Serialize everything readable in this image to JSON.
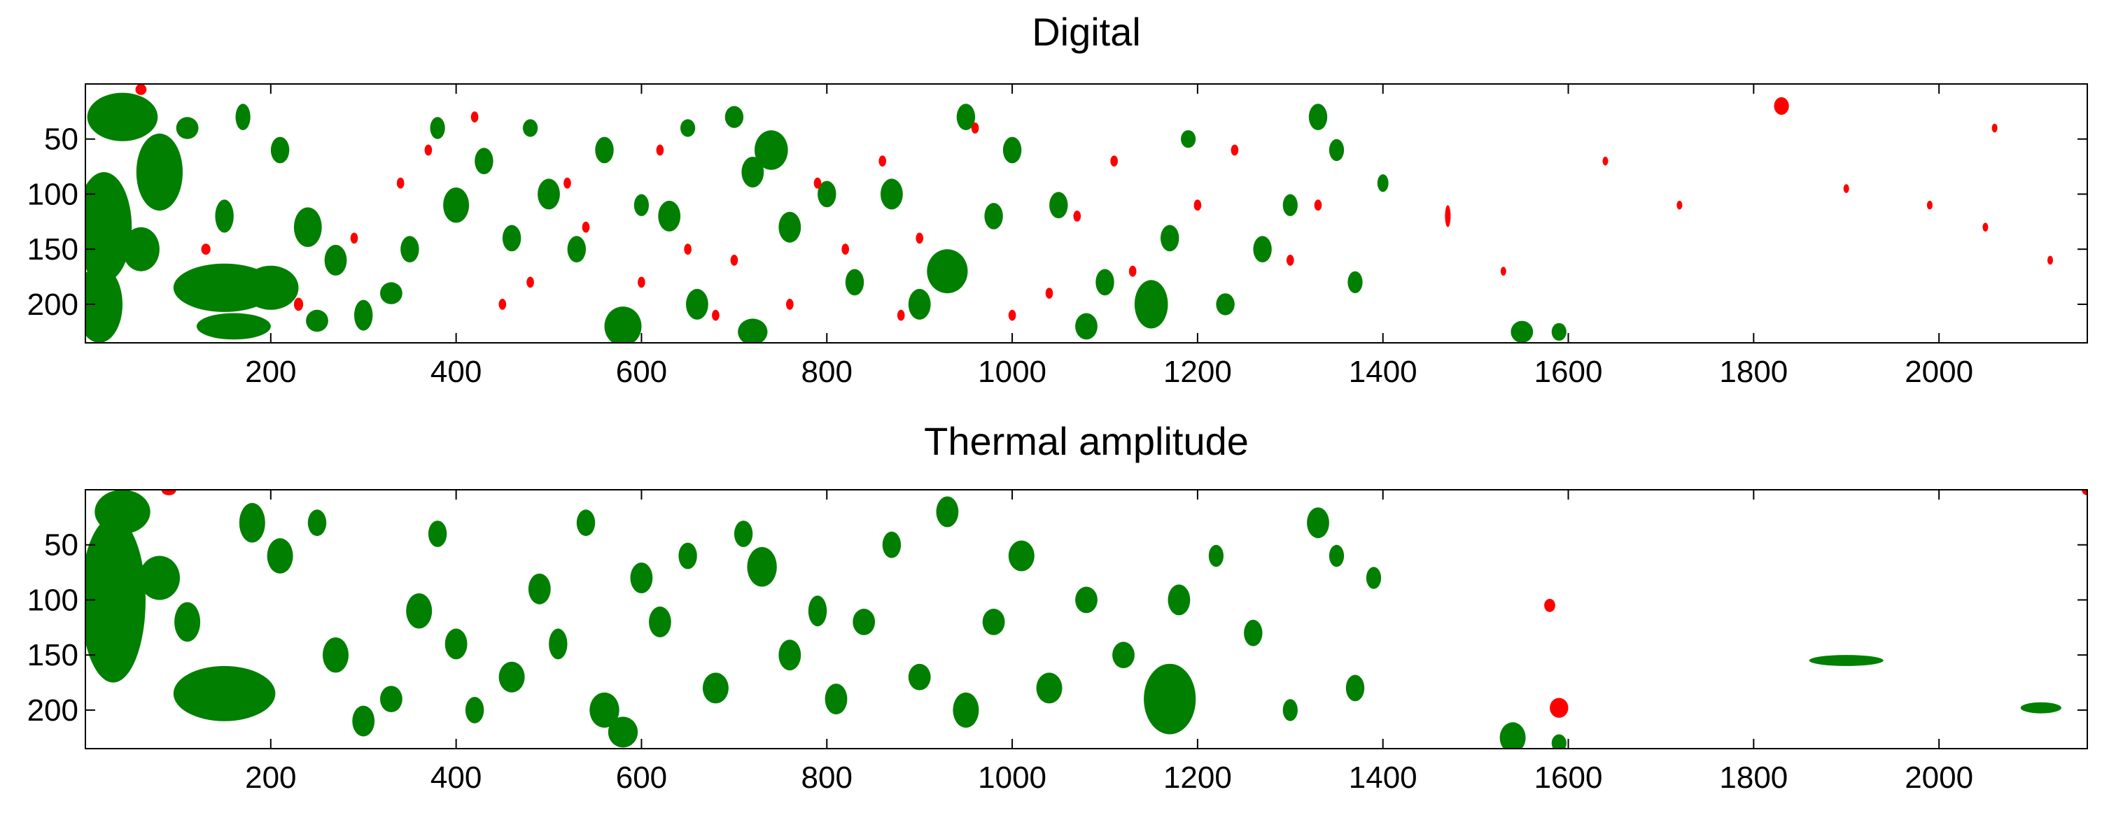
{
  "colors": {
    "green": "#007f00",
    "red": "#ff0000",
    "axis": "#000000"
  },
  "chart_data": [
    {
      "type": "heatmap",
      "title": "Digital",
      "xlim": [
        0,
        2160
      ],
      "ylim": [
        0,
        235
      ],
      "y_reversed": true,
      "xticks": [
        200,
        400,
        600,
        800,
        1000,
        1200,
        1400,
        1600,
        1800,
        2000
      ],
      "yticks": [
        50,
        100,
        150,
        200
      ],
      "classes": [
        {
          "name": "",
          "color": "#007f00"
        },
        {
          "name": "",
          "color": "#ff0000"
        }
      ],
      "grid": false,
      "legend": "none",
      "green_spots": [
        [
          40,
          30,
          38,
          22
        ],
        [
          20,
          130,
          30,
          50
        ],
        [
          15,
          200,
          25,
          35
        ],
        [
          80,
          80,
          25,
          35
        ],
        [
          60,
          150,
          20,
          20
        ],
        [
          110,
          40,
          12,
          10
        ],
        [
          150,
          120,
          10,
          15
        ],
        [
          150,
          185,
          55,
          22
        ],
        [
          200,
          185,
          30,
          20
        ],
        [
          160,
          220,
          40,
          12
        ],
        [
          170,
          30,
          8,
          12
        ],
        [
          210,
          60,
          10,
          12
        ],
        [
          240,
          130,
          15,
          18
        ],
        [
          270,
          160,
          12,
          14
        ],
        [
          300,
          210,
          10,
          14
        ],
        [
          330,
          190,
          12,
          10
        ],
        [
          350,
          150,
          10,
          12
        ],
        [
          380,
          40,
          8,
          10
        ],
        [
          400,
          110,
          14,
          16
        ],
        [
          430,
          70,
          10,
          12
        ],
        [
          460,
          140,
          10,
          12
        ],
        [
          480,
          40,
          8,
          8
        ],
        [
          500,
          100,
          12,
          14
        ],
        [
          530,
          150,
          10,
          12
        ],
        [
          560,
          60,
          10,
          12
        ],
        [
          580,
          220,
          20,
          18
        ],
        [
          600,
          110,
          8,
          10
        ],
        [
          630,
          120,
          12,
          14
        ],
        [
          650,
          40,
          8,
          8
        ],
        [
          660,
          200,
          12,
          14
        ],
        [
          700,
          30,
          10,
          10
        ],
        [
          720,
          80,
          12,
          14
        ],
        [
          740,
          60,
          18,
          18
        ],
        [
          760,
          130,
          12,
          14
        ],
        [
          800,
          100,
          10,
          12
        ],
        [
          830,
          180,
          10,
          12
        ],
        [
          870,
          100,
          12,
          14
        ],
        [
          900,
          200,
          12,
          14
        ],
        [
          930,
          170,
          22,
          20
        ],
        [
          950,
          30,
          10,
          12
        ],
        [
          980,
          120,
          10,
          12
        ],
        [
          1000,
          60,
          10,
          12
        ],
        [
          1050,
          110,
          10,
          12
        ],
        [
          1080,
          220,
          12,
          12
        ],
        [
          1100,
          180,
          10,
          12
        ],
        [
          1150,
          200,
          18,
          22
        ],
        [
          1170,
          140,
          10,
          12
        ],
        [
          1190,
          50,
          8,
          8
        ],
        [
          1230,
          200,
          10,
          10
        ],
        [
          1270,
          150,
          10,
          12
        ],
        [
          1300,
          110,
          8,
          10
        ],
        [
          1330,
          30,
          10,
          12
        ],
        [
          1350,
          60,
          8,
          10
        ],
        [
          1370,
          180,
          8,
          10
        ],
        [
          1400,
          90,
          6,
          8
        ],
        [
          1550,
          225,
          12,
          10
        ],
        [
          1590,
          225,
          8,
          8
        ],
        [
          720,
          225,
          16,
          12
        ],
        [
          250,
          215,
          12,
          10
        ]
      ],
      "red_spots": [
        [
          60,
          5,
          6,
          5
        ],
        [
          130,
          150,
          5,
          5
        ],
        [
          230,
          200,
          5,
          6
        ],
        [
          290,
          140,
          4,
          5
        ],
        [
          340,
          90,
          4,
          5
        ],
        [
          370,
          60,
          4,
          5
        ],
        [
          420,
          30,
          4,
          5
        ],
        [
          450,
          200,
          4,
          5
        ],
        [
          480,
          180,
          4,
          5
        ],
        [
          520,
          90,
          4,
          5
        ],
        [
          540,
          130,
          4,
          5
        ],
        [
          600,
          180,
          4,
          5
        ],
        [
          620,
          60,
          4,
          5
        ],
        [
          650,
          150,
          4,
          5
        ],
        [
          680,
          210,
          4,
          5
        ],
        [
          700,
          160,
          4,
          5
        ],
        [
          760,
          200,
          4,
          5
        ],
        [
          790,
          90,
          4,
          5
        ],
        [
          820,
          150,
          4,
          5
        ],
        [
          860,
          70,
          4,
          5
        ],
        [
          880,
          210,
          4,
          5
        ],
        [
          900,
          140,
          4,
          5
        ],
        [
          960,
          40,
          4,
          5
        ],
        [
          1000,
          210,
          4,
          5
        ],
        [
          1040,
          190,
          4,
          5
        ],
        [
          1070,
          120,
          4,
          5
        ],
        [
          1110,
          70,
          4,
          5
        ],
        [
          1130,
          170,
          4,
          5
        ],
        [
          1200,
          110,
          4,
          5
        ],
        [
          1240,
          60,
          4,
          5
        ],
        [
          1300,
          160,
          4,
          5
        ],
        [
          1330,
          110,
          4,
          5
        ],
        [
          1470,
          120,
          3,
          10
        ],
        [
          1530,
          170,
          3,
          4
        ],
        [
          1830,
          20,
          8,
          8
        ],
        [
          1900,
          95,
          3,
          4
        ],
        [
          2050,
          130,
          3,
          4
        ],
        [
          2120,
          160,
          3,
          4
        ],
        [
          1640,
          70,
          3,
          4
        ],
        [
          1720,
          110,
          3,
          4
        ],
        [
          1990,
          110,
          3,
          4
        ],
        [
          2060,
          40,
          3,
          4
        ]
      ]
    },
    {
      "type": "heatmap",
      "title": "Thermal amplitude",
      "xlim": [
        0,
        2160
      ],
      "ylim": [
        0,
        235
      ],
      "y_reversed": true,
      "xticks": [
        200,
        400,
        600,
        800,
        1000,
        1200,
        1400,
        1600,
        1800,
        2000
      ],
      "yticks": [
        50,
        100,
        150,
        200
      ],
      "classes": [
        {
          "name": "",
          "color": "#007f00"
        },
        {
          "name": "",
          "color": "#ff0000"
        }
      ],
      "grid": false,
      "legend": "none",
      "green_spots": [
        [
          30,
          100,
          35,
          75
        ],
        [
          40,
          20,
          30,
          20
        ],
        [
          80,
          80,
          22,
          20
        ],
        [
          110,
          120,
          14,
          18
        ],
        [
          150,
          185,
          55,
          25
        ],
        [
          180,
          30,
          14,
          18
        ],
        [
          210,
          60,
          14,
          16
        ],
        [
          250,
          30,
          10,
          12
        ],
        [
          270,
          150,
          14,
          16
        ],
        [
          300,
          210,
          12,
          14
        ],
        [
          330,
          190,
          12,
          12
        ],
        [
          360,
          110,
          14,
          16
        ],
        [
          380,
          40,
          10,
          12
        ],
        [
          400,
          140,
          12,
          14
        ],
        [
          420,
          200,
          10,
          12
        ],
        [
          460,
          170,
          14,
          14
        ],
        [
          490,
          90,
          12,
          14
        ],
        [
          510,
          140,
          10,
          14
        ],
        [
          540,
          30,
          10,
          12
        ],
        [
          560,
          200,
          16,
          16
        ],
        [
          580,
          220,
          16,
          14
        ],
        [
          600,
          80,
          12,
          14
        ],
        [
          620,
          120,
          12,
          14
        ],
        [
          650,
          60,
          10,
          12
        ],
        [
          680,
          180,
          14,
          14
        ],
        [
          710,
          40,
          10,
          12
        ],
        [
          730,
          70,
          16,
          18
        ],
        [
          760,
          150,
          12,
          14
        ],
        [
          790,
          110,
          10,
          14
        ],
        [
          810,
          190,
          12,
          14
        ],
        [
          840,
          120,
          12,
          12
        ],
        [
          870,
          50,
          10,
          12
        ],
        [
          900,
          170,
          12,
          12
        ],
        [
          930,
          20,
          12,
          14
        ],
        [
          950,
          200,
          14,
          16
        ],
        [
          980,
          120,
          12,
          12
        ],
        [
          1010,
          60,
          14,
          14
        ],
        [
          1040,
          180,
          14,
          14
        ],
        [
          1080,
          100,
          12,
          12
        ],
        [
          1120,
          150,
          12,
          12
        ],
        [
          1170,
          190,
          28,
          32
        ],
        [
          1180,
          100,
          12,
          14
        ],
        [
          1220,
          60,
          8,
          10
        ],
        [
          1260,
          130,
          10,
          12
        ],
        [
          1300,
          200,
          8,
          10
        ],
        [
          1330,
          30,
          12,
          14
        ],
        [
          1350,
          60,
          8,
          10
        ],
        [
          1370,
          180,
          10,
          12
        ],
        [
          1390,
          80,
          8,
          10
        ],
        [
          1540,
          225,
          14,
          14
        ],
        [
          1590,
          230,
          8,
          8
        ],
        [
          1900,
          155,
          40,
          5
        ],
        [
          2110,
          198,
          22,
          5
        ]
      ],
      "red_spots": [
        [
          90,
          0,
          8,
          5
        ],
        [
          1580,
          105,
          6,
          6
        ],
        [
          1590,
          198,
          10,
          9
        ],
        [
          2160,
          0,
          6,
          5
        ]
      ]
    }
  ]
}
